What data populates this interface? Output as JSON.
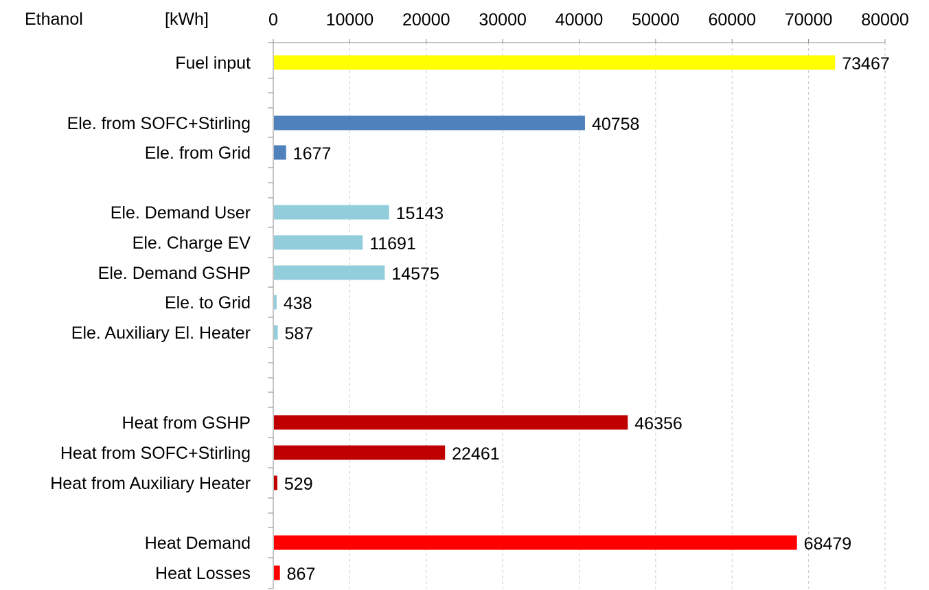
{
  "header": {
    "title": "Ethanol",
    "unit": "[kWh]"
  },
  "chart_data": {
    "type": "bar",
    "orientation": "horizontal",
    "title": "Ethanol",
    "xlabel": "[kWh]",
    "xlim": [
      0,
      80000
    ],
    "xticks": [
      0,
      10000,
      20000,
      30000,
      40000,
      50000,
      60000,
      70000,
      80000
    ],
    "x_axis_position": "top",
    "grid": "vertical dashed",
    "data_labels": true,
    "categories": [
      "Fuel input",
      "Ele. from SOFC+Stirling",
      "Ele. from Grid",
      "Ele. Demand User",
      "Ele. Charge EV",
      "Ele. Demand GSHP",
      "Ele. to Grid",
      "Ele. Auxiliary El. Heater",
      "Heat from GSHP",
      "Heat from SOFC+Stirling",
      "Heat from Auxiliary Heater",
      "Heat Demand",
      "Heat Losses"
    ],
    "values": [
      73467,
      40758,
      1677,
      15143,
      11691,
      14575,
      438,
      587,
      46356,
      22461,
      529,
      68479,
      867
    ],
    "colors": [
      "#ffff00",
      "#4f81bd",
      "#4f81bd",
      "#92cddc",
      "#92cddc",
      "#92cddc",
      "#92cddc",
      "#92cddc",
      "#c00000",
      "#c00000",
      "#c00000",
      "#ff0000",
      "#ff0000"
    ]
  }
}
